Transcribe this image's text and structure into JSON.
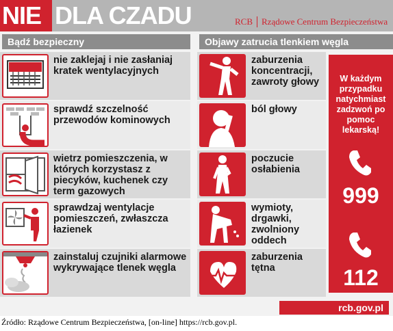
{
  "header": {
    "title_red": "NIE",
    "title_rest": "DLA CZADU",
    "logo_abbr": "RCB",
    "logo_name": "Rządowe Centrum Bezpieczeństwa"
  },
  "safety": {
    "heading": "Bądź bezpieczny",
    "items": [
      {
        "text": "nie zaklejaj i nie zasłaniaj kratek wentylacyjnych",
        "icon": "vent-grille-icon"
      },
      {
        "text": "sprawdź szczelność przewodów kominowych",
        "icon": "chimney-icon"
      },
      {
        "text": "wietrz pomieszczenia, w których korzystasz z piecyków, kuchenek czy term gazowych",
        "icon": "window-icon"
      },
      {
        "text": "sprawdzaj wentylacje pomieszczeń, zwłaszcza łazienek",
        "icon": "fan-person-icon"
      },
      {
        "text": "zainstaluj czujniki alarmowe wykrywające tlenek węgla",
        "icon": "detector-icon"
      }
    ]
  },
  "symptoms": {
    "heading": "Objawy zatrucia tlenkiem węgla",
    "items": [
      {
        "text": "zaburzenia koncentracji, zawroty głowy",
        "icon": "dizzy-person-icon"
      },
      {
        "text": "ból głowy",
        "icon": "headache-person-icon"
      },
      {
        "text": "poczucie osłabienia",
        "icon": "weak-person-icon"
      },
      {
        "text": "wymioty, drgawki, zwolniony oddech",
        "icon": "vomiting-person-icon"
      },
      {
        "text": "zaburzenia tętna",
        "icon": "heart-pulse-icon"
      }
    ]
  },
  "emergency": {
    "message": "W każdym przypadku natychmiast zadzwoń po pomoc lekarską!",
    "number1": "999",
    "number2": "112",
    "phone_icon": "phone-icon"
  },
  "footer": {
    "url": "rcb.gov.pl",
    "caption": "Źródło: Rządowe Centrum Bezpieczeństwa, [on-line] https://rcb.gov.pl."
  },
  "colors": {
    "accent_red": "#d0222e",
    "header_gray": "#b5b5b5",
    "section_gray": "#8c8c8c"
  }
}
